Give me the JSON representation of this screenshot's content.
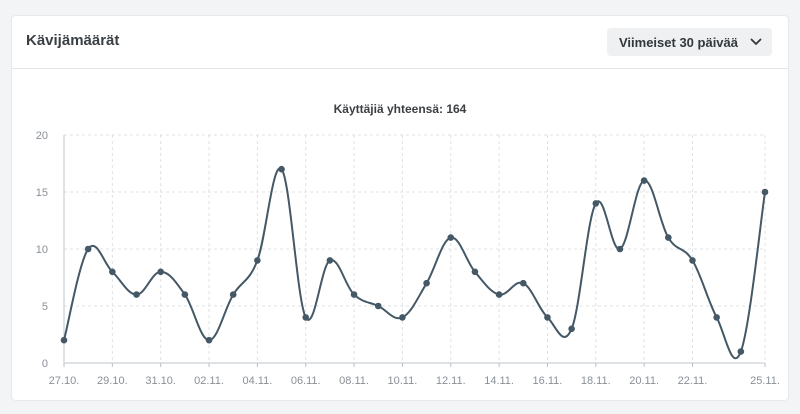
{
  "card": {
    "title": "Kävijämäärät",
    "range_label": "Viimeiset 30 päivää"
  },
  "colors": {
    "line": "#445866",
    "grid": "#dde1e5",
    "axis_text": "#8a9097",
    "title_text": "#3b4044"
  },
  "chart_data": {
    "type": "line",
    "title": "Käyttäjiä yhteensä: 164",
    "xlabel": "",
    "ylabel": "",
    "ylim": [
      0,
      20
    ],
    "yticks": [
      0,
      5,
      10,
      15,
      20
    ],
    "grid": true,
    "categories": [
      "27.10.",
      "28.10.",
      "29.10.",
      "30.10.",
      "31.10.",
      "01.11.",
      "02.11.",
      "03.11.",
      "04.11.",
      "05.11.",
      "06.11.",
      "07.11.",
      "08.11.",
      "09.11.",
      "10.11.",
      "11.11.",
      "12.11.",
      "13.11.",
      "14.11.",
      "15.11.",
      "16.11.",
      "17.11.",
      "18.11.",
      "19.11.",
      "20.11.",
      "21.11.",
      "22.11.",
      "23.11.",
      "24.11.",
      "25.11."
    ],
    "xtick_labels": [
      "27.10.",
      "",
      "29.10.",
      "",
      "31.10.",
      "",
      "02.11.",
      "",
      "04.11.",
      "",
      "06.11.",
      "",
      "08.11.",
      "",
      "10.11.",
      "",
      "12.11.",
      "",
      "14.11.",
      "",
      "16.11.",
      "",
      "18.11.",
      "",
      "20.11.",
      "",
      "22.11.",
      "",
      "",
      "25.11."
    ],
    "series": [
      {
        "values": [
          2,
          10,
          8,
          6,
          8,
          6,
          2,
          6,
          9,
          17,
          4,
          9,
          6,
          5,
          4,
          7,
          11,
          8,
          6,
          7,
          4,
          3,
          14,
          10,
          16,
          11,
          9,
          4,
          1,
          15
        ]
      }
    ]
  }
}
